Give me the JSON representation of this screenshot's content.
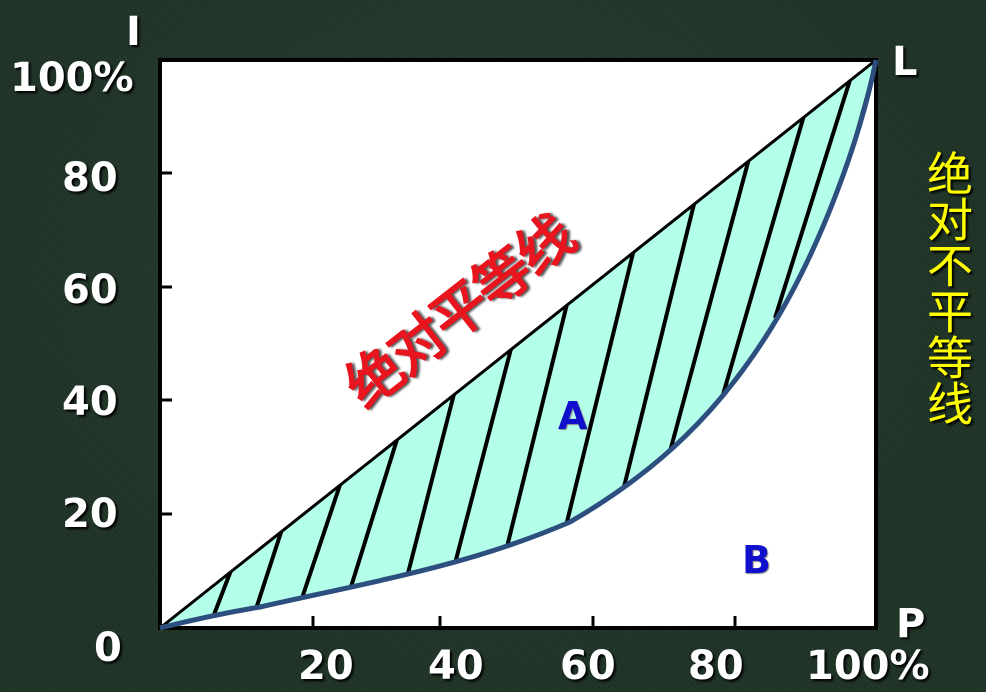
{
  "axis_labels": {
    "y_top": "I",
    "x_right": "P",
    "corner": "L",
    "origin": "0"
  },
  "y_ticks": [
    "100%",
    "80",
    "60",
    "40",
    "20"
  ],
  "x_ticks": [
    "20",
    "40",
    "60",
    "80",
    "100%"
  ],
  "labels": {
    "equality_line": "绝对平等线",
    "inequality_line": "绝对不平等线",
    "area_a": "A",
    "area_b": "B"
  },
  "colors": {
    "background": "#1f3326",
    "plot_area": "#ffffff",
    "area_a_fill": "#b3ffe9",
    "lorenz_curve": "#2d4f80",
    "equality_text": "#e8141e",
    "inequality_text": "#ffff00",
    "area_text": "#1010cc"
  }
}
